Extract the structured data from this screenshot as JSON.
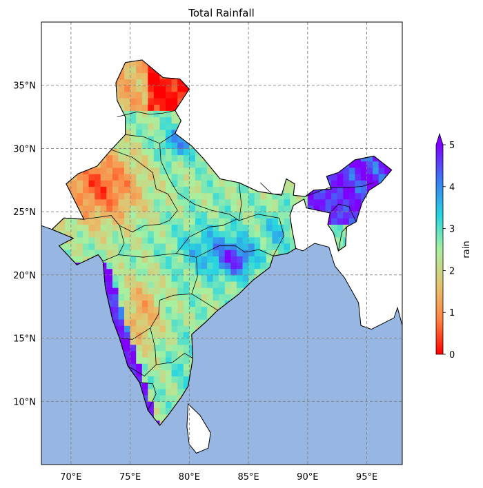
{
  "title": "Total Rainfall",
  "colorbar": {
    "label": "rain",
    "ticks": [
      "0",
      "1",
      "2",
      "3",
      "4",
      "5"
    ],
    "min": 0,
    "max": 5,
    "extend": "max",
    "colormap": "rainbow_r",
    "colors": [
      "#ff0000",
      "#ff7f3f",
      "#e6c06c",
      "#a8f0a0",
      "#28d6e0",
      "#3a7cf2",
      "#7f00ff"
    ]
  },
  "map": {
    "region": "India",
    "extent_lon": [
      67.5,
      98
    ],
    "extent_lat": [
      5,
      40
    ],
    "ocean_color": "#97b6e1",
    "land_color": "#ffffff",
    "gridlines": true,
    "gridline_style": "dashed"
  },
  "axes": {
    "x_ticks": [
      "70°E",
      "75°E",
      "80°E",
      "85°E",
      "90°E",
      "95°E"
    ],
    "x_values": [
      70,
      75,
      80,
      85,
      90,
      95
    ],
    "y_ticks": [
      "10°N",
      "15°N",
      "20°N",
      "25°N",
      "30°N",
      "35°N"
    ],
    "y_values": [
      10,
      15,
      20,
      25,
      30,
      35
    ]
  }
}
